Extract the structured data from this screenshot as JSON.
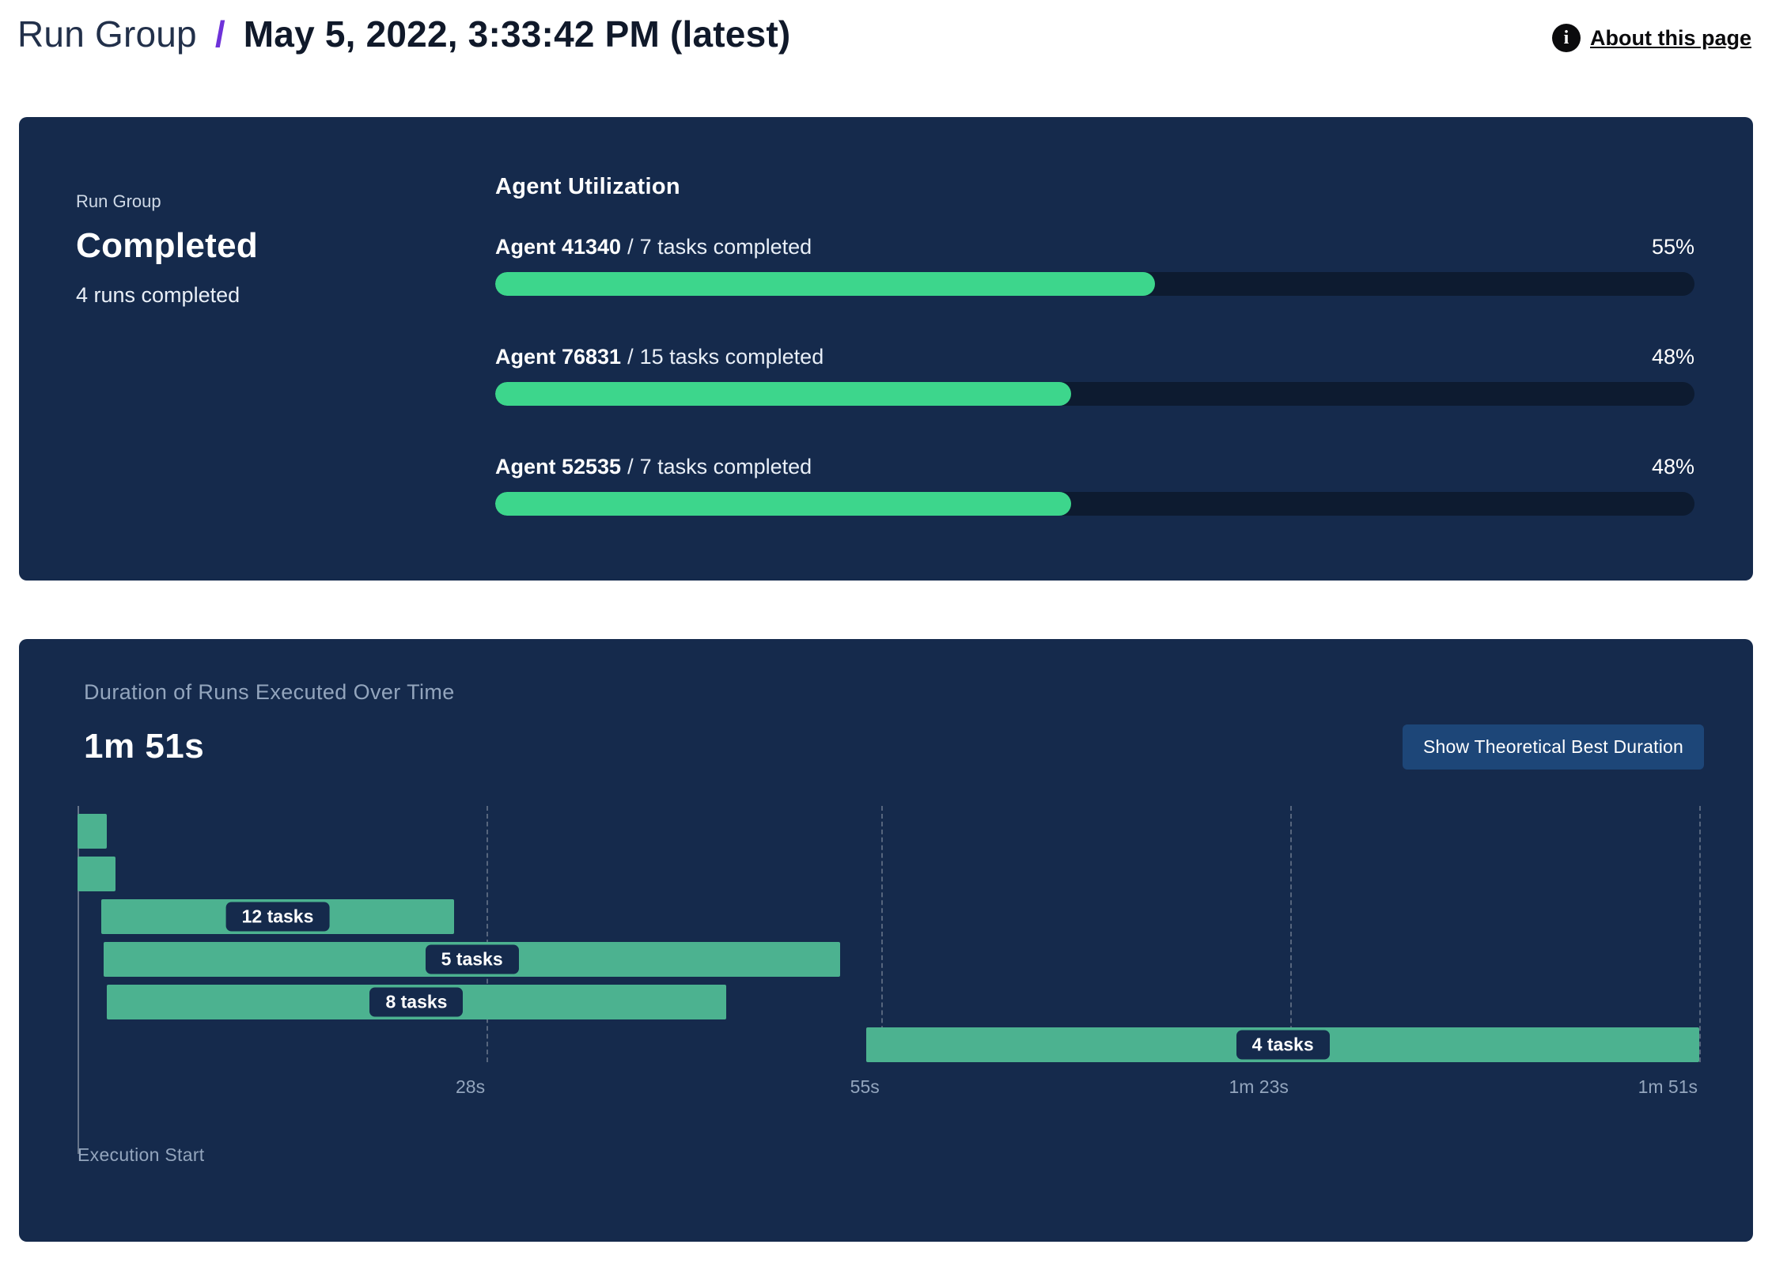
{
  "header": {
    "breadcrumb_root": "Run Group",
    "separator": "/",
    "title": "May 5, 2022, 3:33:42 PM (latest)",
    "about_link": "About this page",
    "info_icon_glyph": "i"
  },
  "summary_panel": {
    "eyebrow": "Run Group",
    "status": "Completed",
    "subtext": "4 runs completed",
    "utilization": {
      "title": "Agent Utilization",
      "separator": "/",
      "agents": [
        {
          "name": "Agent 41340",
          "tasks": "7 tasks completed",
          "percent_label": "55%",
          "percent": 55
        },
        {
          "name": "Agent 76831",
          "tasks": "15 tasks completed",
          "percent_label": "48%",
          "percent": 48
        },
        {
          "name": "Agent 52535",
          "tasks": "7 tasks completed",
          "percent_label": "48%",
          "percent": 48
        }
      ]
    }
  },
  "duration_panel": {
    "title": "Duration of Runs Executed Over Time",
    "total_duration": "1m 51s",
    "button_label": "Show Theoretical Best Duration",
    "execution_start_label": "Execution Start",
    "chart_data": {
      "type": "gantt",
      "x_max_s": 111,
      "x_ticks": [
        {
          "label": "28s",
          "s": 28
        },
        {
          "label": "55s",
          "s": 55
        },
        {
          "label": "1m 23s",
          "s": 83
        },
        {
          "label": "1m 51s",
          "s": 111
        }
      ],
      "bars": [
        {
          "start_s": 0,
          "end_s": 2,
          "label": ""
        },
        {
          "start_s": 0,
          "end_s": 2.6,
          "label": ""
        },
        {
          "start_s": 1.6,
          "end_s": 25.8,
          "label": "12 tasks"
        },
        {
          "start_s": 1.8,
          "end_s": 52.2,
          "label": "5 tasks"
        },
        {
          "start_s": 2.0,
          "end_s": 44.4,
          "label": "8 tasks"
        },
        {
          "start_s": 54,
          "end_s": 111,
          "label": "4 tasks"
        }
      ]
    }
  },
  "colors": {
    "panel_bg": "#152a4c",
    "track_bg": "#0d1b30",
    "progress_green": "#3dd68c",
    "gantt_green": "#4cb290",
    "breadcrumb_purple": "#6e32d9",
    "button_bg": "#1d4678",
    "muted_text": "#93a5bd"
  }
}
